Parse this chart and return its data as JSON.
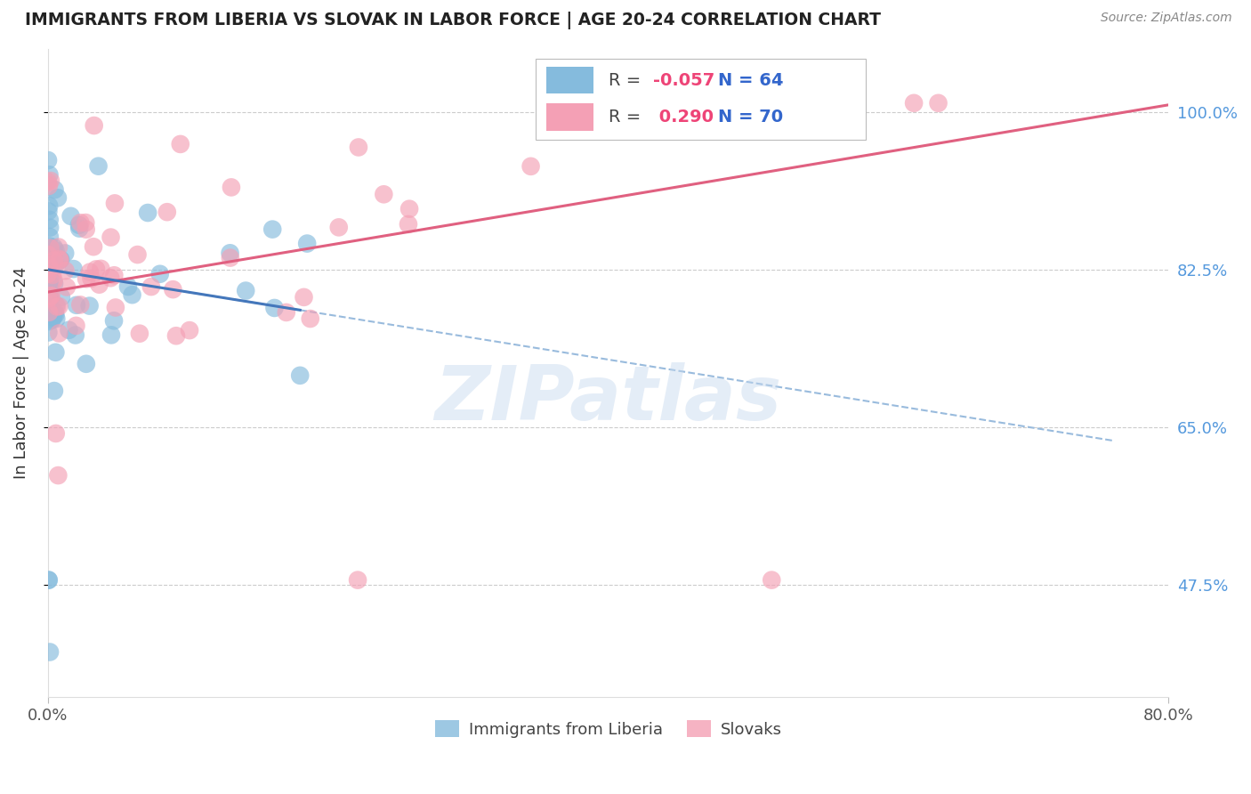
{
  "title": "IMMIGRANTS FROM LIBERIA VS SLOVAK IN LABOR FORCE | AGE 20-24 CORRELATION CHART",
  "source": "Source: ZipAtlas.com",
  "ylabel": "In Labor Force | Age 20-24",
  "xlabel_liberia": "Immigrants from Liberia",
  "xlabel_slovak": "Slovaks",
  "xmin": 0.0,
  "xmax": 0.8,
  "ymin": 0.35,
  "ymax": 1.07,
  "yticks": [
    0.475,
    0.65,
    0.825,
    1.0
  ],
  "ytick_labels": [
    "47.5%",
    "65.0%",
    "82.5%",
    "100.0%"
  ],
  "color_liberia": "#85BBDD",
  "color_slovak": "#F4A0B5",
  "trendline_liberia_solid_color": "#4477BB",
  "trendline_liberia_dash_color": "#99BBDD",
  "trendline_slovak_color": "#E06080",
  "R_liberia": -0.057,
  "N_liberia": 64,
  "R_slovak": 0.29,
  "N_slovak": 70,
  "watermark": "ZIPatlas",
  "background_color": "#FFFFFF",
  "grid_color": "#CCCCCC",
  "right_tick_color": "#5599DD",
  "legend_R_color": "#EE4477",
  "legend_N_color": "#3366CC"
}
